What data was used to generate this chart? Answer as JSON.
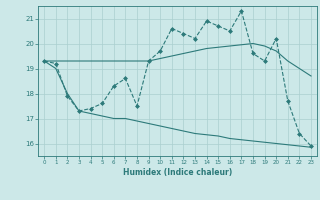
{
  "xlabel": "Humidex (Indice chaleur)",
  "x_values": [
    0,
    1,
    2,
    3,
    4,
    5,
    6,
    7,
    8,
    9,
    10,
    11,
    12,
    13,
    14,
    15,
    16,
    17,
    18,
    19,
    20,
    21,
    22,
    23
  ],
  "main_line": [
    19.3,
    19.2,
    17.9,
    17.3,
    17.4,
    17.6,
    18.3,
    18.6,
    17.5,
    19.3,
    19.7,
    20.6,
    20.4,
    20.2,
    20.9,
    20.7,
    20.5,
    21.3,
    19.6,
    19.3,
    20.2,
    17.7,
    16.4,
    15.9
  ],
  "upper_line": [
    19.3,
    19.3,
    19.3,
    19.3,
    19.3,
    19.3,
    19.3,
    19.3,
    19.3,
    19.3,
    19.4,
    19.5,
    19.6,
    19.7,
    19.8,
    19.85,
    19.9,
    19.95,
    20.0,
    19.9,
    19.7,
    19.3,
    19.0,
    18.7
  ],
  "lower_line": [
    19.3,
    19.0,
    18.0,
    17.3,
    17.2,
    17.1,
    17.0,
    17.0,
    16.9,
    16.8,
    16.7,
    16.6,
    16.5,
    16.4,
    16.35,
    16.3,
    16.2,
    16.15,
    16.1,
    16.05,
    16.0,
    15.95,
    15.9,
    15.85
  ],
  "line_color": "#2d7a7a",
  "bg_color": "#cce8e8",
  "grid_color": "#aacfcf",
  "ylim": [
    15.5,
    21.5
  ],
  "yticks": [
    16,
    17,
    18,
    19,
    20,
    21
  ],
  "xlim": [
    -0.5,
    23.5
  ],
  "xticks": [
    0,
    1,
    2,
    3,
    4,
    5,
    6,
    7,
    8,
    9,
    10,
    11,
    12,
    13,
    14,
    15,
    16,
    17,
    18,
    19,
    20,
    21,
    22,
    23
  ]
}
